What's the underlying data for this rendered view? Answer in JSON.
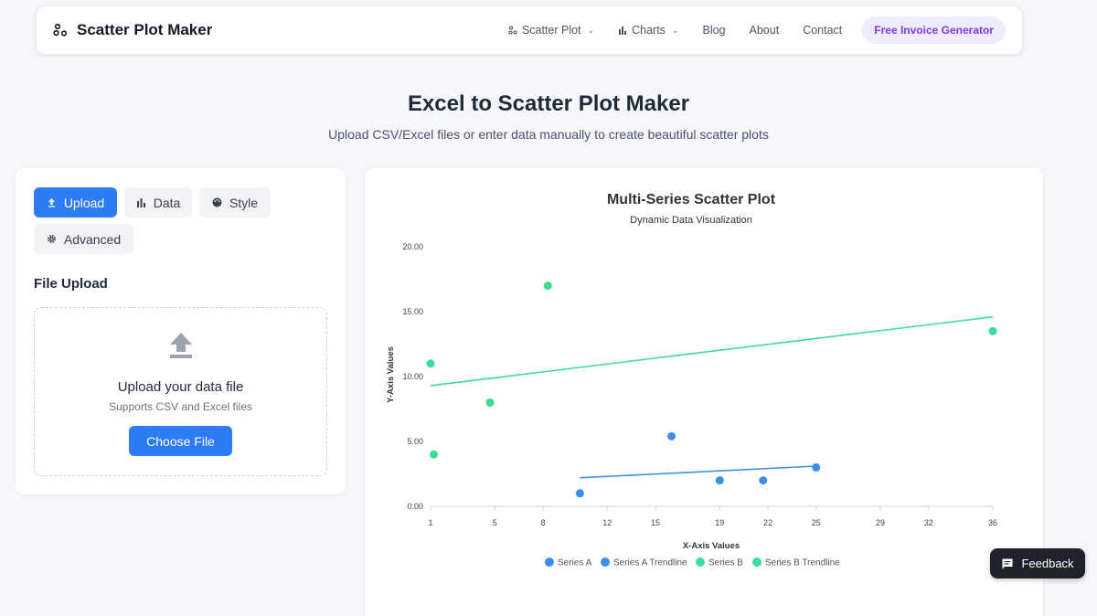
{
  "nav": {
    "brand": "Scatter Plot Maker",
    "links": [
      {
        "label": "Scatter Plot",
        "icon": "scatter-icon",
        "dropdown": true
      },
      {
        "label": "Charts",
        "icon": "bar-chart-icon",
        "dropdown": true
      },
      {
        "label": "Blog"
      },
      {
        "label": "About"
      },
      {
        "label": "Contact"
      }
    ],
    "cta": "Free Invoice Generator"
  },
  "hero": {
    "title": "Excel to Scatter Plot Maker",
    "subtitle": "Upload CSV/Excel files or enter data manually to create beautiful scatter plots"
  },
  "tabs": [
    {
      "label": "Upload",
      "icon": "upload-icon",
      "active": true
    },
    {
      "label": "Data",
      "icon": "bar-chart-icon",
      "active": false
    },
    {
      "label": "Style",
      "icon": "palette-icon",
      "active": false
    },
    {
      "label": "Advanced",
      "icon": "gear-icon",
      "active": false
    }
  ],
  "upload": {
    "section_title": "File Upload",
    "title": "Upload your data file",
    "subtitle": "Supports CSV and Excel files",
    "button": "Choose File"
  },
  "feedback": "Feedback",
  "colors": {
    "primary": "#2e7bf6",
    "series_a": "#3b8fe8",
    "series_b": "#3ddc97",
    "cta_text": "#7c3aed"
  },
  "chart_data": {
    "type": "scatter",
    "title": "Multi-Series Scatter Plot",
    "subtitle": "Dynamic Data Visualization",
    "xlabel": "X-Axis Values",
    "ylabel": "Y-Axis Values",
    "xlim": [
      1,
      36
    ],
    "ylim": [
      0,
      20
    ],
    "x_ticks": [
      "1",
      "5",
      "8",
      "12",
      "15",
      "19",
      "22",
      "25",
      "29",
      "32",
      "36"
    ],
    "y_ticks": [
      "0.00",
      "5.00",
      "10.00",
      "15.00",
      "20.00"
    ],
    "legend_position": "bottom",
    "legend": [
      "Series A",
      "Series A Trendline",
      "Series B",
      "Series B Trendline"
    ],
    "series": [
      {
        "name": "Series A",
        "color": "#3b8fe8",
        "points": [
          [
            10.3,
            1
          ],
          [
            16,
            5.4
          ],
          [
            19,
            2
          ],
          [
            21.7,
            2
          ],
          [
            25,
            3
          ]
        ],
        "trendline": [
          [
            10.3,
            2.2
          ],
          [
            25,
            3.1
          ]
        ]
      },
      {
        "name": "Series B",
        "color": "#3ddc97",
        "points": [
          [
            1,
            11
          ],
          [
            1.2,
            4
          ],
          [
            4.7,
            8
          ],
          [
            8.3,
            17
          ],
          [
            36,
            13.5
          ]
        ],
        "trendline": [
          [
            1,
            9.3
          ],
          [
            36,
            14.6
          ]
        ]
      }
    ]
  }
}
